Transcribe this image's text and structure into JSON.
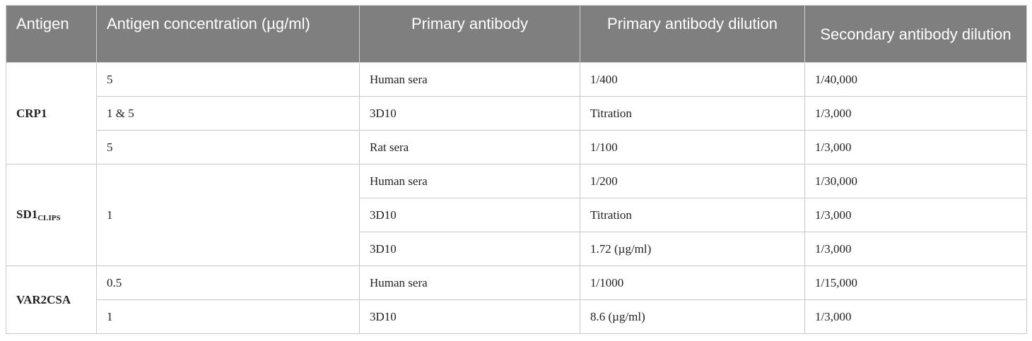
{
  "headers": {
    "antigen": "Antigen",
    "antigen_concentration": "Antigen concentration (µg/ml)",
    "primary_antibody": "Primary antibody",
    "primary_antibody_dilution": "Primary antibody dilution",
    "secondary_antibody_dilution": "Secondary antibody dilution"
  },
  "groups": [
    {
      "antigen": "CRP1",
      "antigen_sub": "",
      "rows": [
        {
          "concentration": "5",
          "primary_antibody": "Human sera",
          "primary_dilution": "1/400",
          "secondary_dilution": "1/40,000"
        },
        {
          "concentration": "1 & 5",
          "primary_antibody": "3D10",
          "primary_dilution": "Titration",
          "secondary_dilution": "1/3,000"
        },
        {
          "concentration": "5",
          "primary_antibody": "Rat sera",
          "primary_dilution": "1/100",
          "secondary_dilution": "1/3,000"
        }
      ]
    },
    {
      "antigen": "SD1",
      "antigen_sub": "CLIPS",
      "concentration": "1",
      "rows": [
        {
          "primary_antibody": "Human sera",
          "primary_dilution": "1/200",
          "secondary_dilution": "1/30,000"
        },
        {
          "primary_antibody": "3D10",
          "primary_dilution": "Titration",
          "secondary_dilution": "1/3,000"
        },
        {
          "primary_antibody": "3D10",
          "primary_dilution": "1.72 (µg/ml)",
          "secondary_dilution": "1/3,000"
        }
      ]
    },
    {
      "antigen": "VAR2CSA",
      "antigen_sub": "",
      "rows": [
        {
          "concentration": "0.5",
          "primary_antibody": "Human sera",
          "primary_dilution": "1/1000",
          "secondary_dilution": "1/15,000"
        },
        {
          "concentration": "1",
          "primary_antibody": "3D10",
          "primary_dilution": "8.6 (µg/ml)",
          "secondary_dilution": "1/3,000"
        }
      ]
    }
  ]
}
